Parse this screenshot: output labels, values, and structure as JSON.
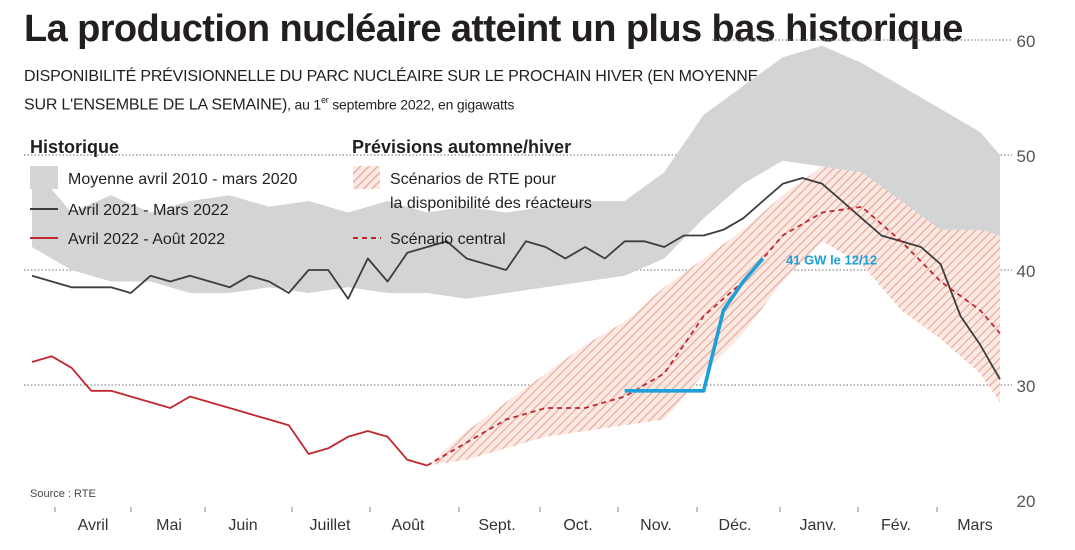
{
  "title": "La production nucléaire atteint un plus bas historique",
  "subtitle": {
    "line1": "DISPONIBILITÉ PRÉVISIONNELLE DU PARC NUCLÉAIRE SUR LE PROCHAIN HIVER (EN MOYENNE",
    "line2_caps": "SUR L'ENSEMBLE DE LA SEMAINE)",
    "line2_rest_a": ", au 1",
    "line2_sup": "er",
    "line2_rest_b": " septembre 2022, en gigawatts"
  },
  "source": "Source : RTE",
  "colors": {
    "band_grey": "#d3d4d5",
    "line_2021": "#3d3d3d",
    "line_2022": "#c1272d",
    "hatch": "#e8a594",
    "central": "#c1272d",
    "blue": "#1d9fd9",
    "gridline": "#8a8a8a"
  },
  "chart_data": {
    "type": "line",
    "title": "La production nucléaire atteint un plus bas historique",
    "ylim": [
      20,
      60
    ],
    "yticks": [
      20,
      30,
      40,
      50,
      60
    ],
    "grid": true,
    "legend_placement": "top-left",
    "x_labels": [
      "Avril",
      "Mai",
      "Juin",
      "Juillet",
      "Août",
      "Sept.",
      "Oct.",
      "Nov.",
      "Déc.",
      "Janv.",
      "Fév.",
      "Mars"
    ],
    "x_unit": "week index from start of April (0–49)",
    "legend": {
      "historique_heading": "Historique",
      "previsions_heading": "Prévisions automne/hiver",
      "band": "Moyenne avril 2010 - mars 2020",
      "line_2021": "Avril 2021 - Mars 2022",
      "line_2022": "Avril 2022 - Août 2022",
      "scenarios_line1": "Scénarios de RTE pour",
      "scenarios_line2": "la disponibilité des réacteurs",
      "central": "Scénario central"
    },
    "annotation": "41 GW le 12/12",
    "series": [
      {
        "name": "Moyenne avril 2010 - mars 2020",
        "kind": "band",
        "x": [
          0,
          2,
          4,
          6,
          8,
          10,
          12,
          14,
          16,
          18,
          20,
          22,
          24,
          26,
          28,
          30,
          32,
          34,
          36,
          38,
          40,
          42,
          44,
          46,
          48,
          49
        ],
        "upper": [
          49,
          45,
          46.5,
          45,
          46,
          46.5,
          45.5,
          46,
          45,
          46,
          45,
          45.5,
          45,
          45.5,
          46,
          46,
          48.5,
          53.5,
          56,
          58.5,
          59.5,
          58,
          56,
          54,
          52,
          50
        ],
        "lower": [
          42,
          40,
          39,
          39,
          38,
          38,
          38.5,
          38,
          38.5,
          38,
          38,
          37.5,
          38,
          38.5,
          39,
          39.5,
          41,
          44.5,
          47.5,
          49.5,
          49,
          45,
          42,
          42,
          41,
          41
        ]
      },
      {
        "name": "Avril 2021 - Mars 2022",
        "kind": "line",
        "x": [
          0,
          1,
          2,
          3,
          4,
          5,
          6,
          7,
          8,
          9,
          10,
          11,
          12,
          13,
          14,
          15,
          16,
          17,
          18,
          19,
          20,
          21,
          22,
          23,
          24,
          25,
          26,
          27,
          28,
          29,
          30,
          31,
          32,
          33,
          34,
          35,
          36,
          37,
          38,
          39,
          40,
          41,
          42,
          43,
          44,
          45,
          46,
          47,
          48,
          49
        ],
        "y": [
          39.5,
          39,
          38.5,
          38.5,
          38.5,
          38,
          39.5,
          39,
          39.5,
          39,
          38.5,
          39.5,
          39,
          38,
          40,
          40,
          37.5,
          41,
          39,
          41.5,
          42,
          42.5,
          41,
          40.5,
          40,
          42.5,
          42,
          41,
          42,
          41,
          42.5,
          42.5,
          42,
          43,
          43,
          43.5,
          44.5,
          46,
          47.5,
          48,
          47.5,
          46,
          44.5,
          43,
          42.5,
          42,
          40.5,
          36,
          33.5,
          30.5
        ]
      },
      {
        "name": "Avril 2022 - Août 2022",
        "kind": "line",
        "x": [
          0,
          1,
          2,
          3,
          4,
          5,
          6,
          7,
          8,
          9,
          10,
          11,
          12,
          13,
          14,
          15,
          16,
          17,
          18,
          19,
          20
        ],
        "y": [
          32,
          32.5,
          31.5,
          29.5,
          29.5,
          29,
          28.5,
          28,
          29,
          28.5,
          28,
          27.5,
          27,
          26.5,
          24,
          24.5,
          25.5,
          26,
          25.5,
          23.5,
          23
        ]
      },
      {
        "name": "Scénarios de RTE pour la disponibilité des réacteurs",
        "kind": "band",
        "x": [
          20,
          22,
          24,
          26,
          28,
          30,
          32,
          34,
          36,
          38,
          40,
          42,
          44,
          46,
          48,
          49
        ],
        "upper": [
          23,
          26,
          28.5,
          31,
          33.5,
          35.5,
          38.5,
          41,
          43.5,
          46.5,
          49,
          48.5,
          46,
          43.5,
          43.5,
          43
        ],
        "lower": [
          23,
          23.5,
          24.5,
          25.5,
          26,
          26.5,
          27,
          31,
          34.5,
          39,
          42.5,
          40.5,
          36.5,
          34,
          31,
          28.5
        ]
      },
      {
        "name": "Scénario central",
        "kind": "dashed",
        "x": [
          20,
          22,
          24,
          26,
          28,
          30,
          32,
          34,
          36,
          38,
          40,
          42,
          44,
          46,
          48,
          49
        ],
        "y": [
          23,
          25,
          27,
          28,
          28,
          29,
          31,
          36,
          39,
          43,
          45,
          45.5,
          42.5,
          39,
          36.5,
          34.5
        ]
      },
      {
        "kind": "line",
        "x": [
          30,
          32,
          33,
          34,
          35,
          36,
          37
        ],
        "y": [
          29.5,
          29.5,
          29.5,
          29.5,
          36.5,
          39,
          41
        ]
      }
    ]
  }
}
